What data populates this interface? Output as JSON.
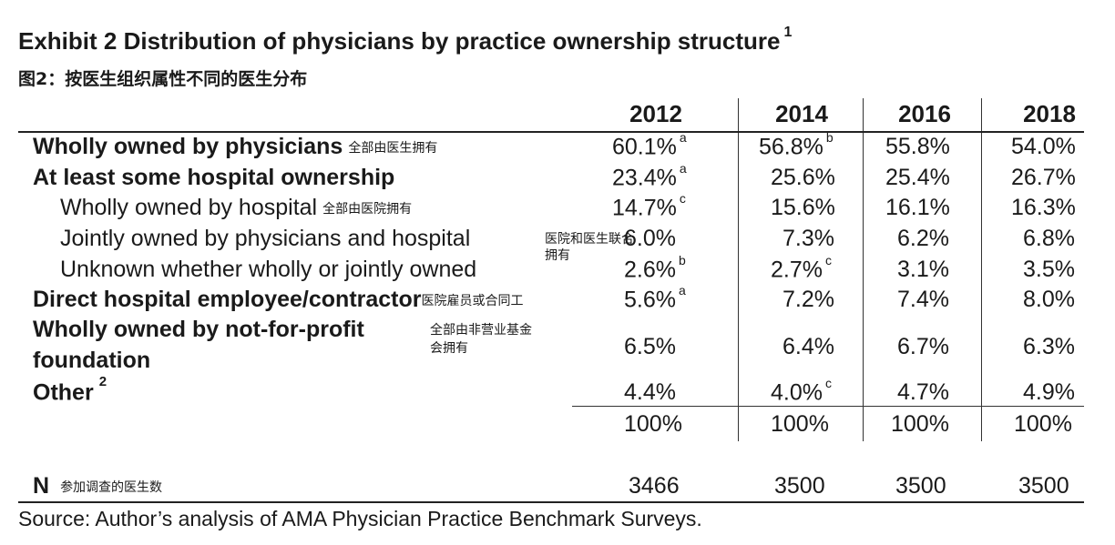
{
  "title": "Exhibit  2 Distribution of physicians by practice ownership structure",
  "title_sup": "1",
  "subtitle": "图2：按医生组织属性不同的医生分布",
  "years": [
    "2012",
    "2014",
    "2016",
    "2018"
  ],
  "rows": [
    {
      "label": "Wholly owned by physicians",
      "note": "全部由医生拥有",
      "values": [
        "60.1%",
        "56.8%",
        "55.8%",
        "54.0%"
      ],
      "sups": [
        "a",
        "b",
        "",
        ""
      ]
    },
    {
      "label": "At least some hospital ownership",
      "note": "",
      "values": [
        "23.4%",
        "25.6%",
        "25.4%",
        "26.7%"
      ],
      "sups": [
        "a",
        "",
        "",
        ""
      ]
    },
    {
      "label": "Wholly owned by hospital",
      "note": "全部由医院拥有",
      "values": [
        "14.7%",
        "15.6%",
        "16.1%",
        "16.3%"
      ],
      "sups": [
        "c",
        "",
        "",
        ""
      ]
    },
    {
      "label": "Jointly owned by physicians and hospital",
      "note": "医院和医生联合拥有",
      "values": [
        "6.0%",
        "7.3%",
        "6.2%",
        "6.8%"
      ],
      "sups": [
        "",
        "",
        "",
        ""
      ]
    },
    {
      "label": "Unknown whether wholly or jointly owned",
      "note": "",
      "values": [
        "2.6%",
        "2.7%",
        "3.1%",
        "3.5%"
      ],
      "sups": [
        "b",
        "c",
        "",
        ""
      ]
    },
    {
      "label": "Direct hospital employee/contractor",
      "note": "医院雇员或合同工",
      "values": [
        "5.6%",
        "7.2%",
        "7.4%",
        "8.0%"
      ],
      "sups": [
        "a",
        "",
        "",
        ""
      ]
    },
    {
      "label_line1": "Wholly owned by not-for-profit",
      "label_line2": "foundation",
      "note_line1": "全部由非营业基金",
      "note_line2": "会拥有",
      "values": [
        "6.5%",
        "6.4%",
        "6.7%",
        "6.3%"
      ],
      "sups": [
        "",
        "",
        "",
        ""
      ]
    },
    {
      "label": "Other",
      "label_sup": "2",
      "values": [
        "4.4%",
        "4.0%",
        "4.7%",
        "4.9%"
      ],
      "sups": [
        "",
        "c",
        "",
        ""
      ]
    }
  ],
  "total": {
    "values": [
      "100%",
      "100%",
      "100%",
      "100%"
    ]
  },
  "n_row": {
    "label": "N",
    "note": "参加调查的医生数",
    "values": [
      "3466",
      "3500",
      "3500",
      "3500"
    ]
  },
  "source": "Source: Author’s analysis of AMA Physician Practice Benchmark Surveys."
}
